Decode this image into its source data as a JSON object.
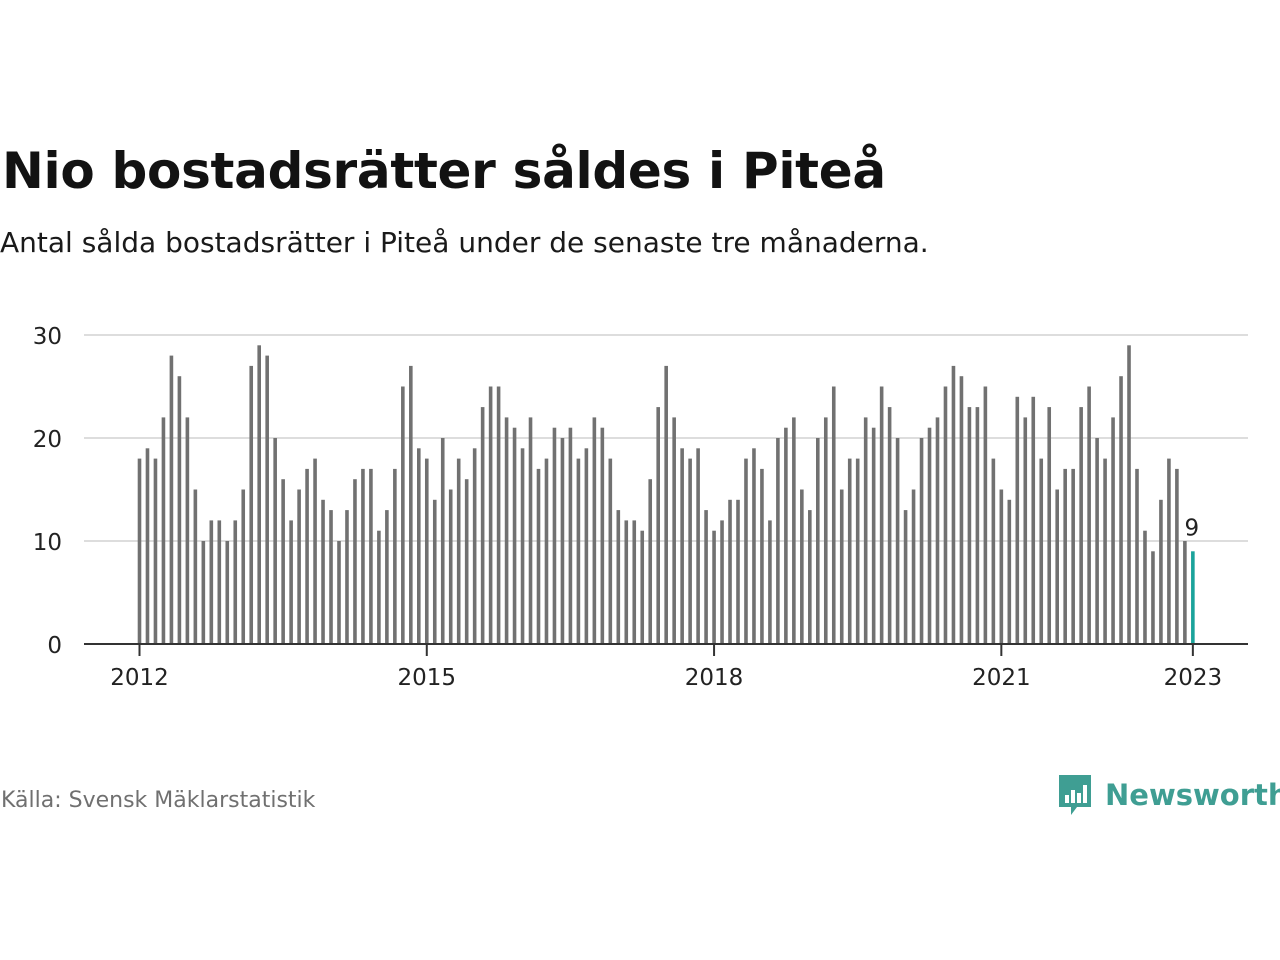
{
  "chart_data": {
    "type": "bar",
    "title": "Nio bostadsrätter såldes i Piteå",
    "subtitle": "Antal sålda bostadsrätter i Piteå under de senaste tre månaderna.",
    "xlabel": "",
    "ylabel": "",
    "x_start": "2012-01",
    "ylim": [
      0,
      30
    ],
    "y_ticks": [
      0,
      10,
      20,
      30
    ],
    "x_ticks": [
      "2012",
      "2015",
      "2018",
      "2021",
      "2023"
    ],
    "x_tick_index": [
      0,
      36,
      72,
      108,
      132
    ],
    "values": [
      18,
      19,
      18,
      22,
      28,
      26,
      22,
      15,
      10,
      12,
      12,
      10,
      12,
      15,
      27,
      29,
      28,
      20,
      16,
      12,
      15,
      17,
      18,
      14,
      13,
      10,
      13,
      16,
      17,
      17,
      11,
      13,
      17,
      25,
      27,
      19,
      18,
      14,
      20,
      15,
      18,
      16,
      19,
      23,
      25,
      25,
      22,
      21,
      19,
      22,
      17,
      18,
      21,
      20,
      21,
      18,
      19,
      22,
      21,
      18,
      13,
      12,
      12,
      11,
      16,
      23,
      27,
      22,
      19,
      18,
      19,
      13,
      11,
      12,
      14,
      14,
      18,
      19,
      17,
      12,
      20,
      21,
      22,
      15,
      13,
      20,
      22,
      25,
      15,
      18,
      18,
      22,
      21,
      25,
      23,
      20,
      13,
      15,
      20,
      21,
      22,
      25,
      27,
      26,
      23,
      23,
      25,
      18,
      15,
      14,
      24,
      22,
      24,
      18,
      23,
      15,
      17,
      17,
      23,
      25,
      20,
      18,
      22,
      26,
      29,
      17,
      11,
      9,
      14,
      18,
      17,
      10,
      9
    ],
    "highlight_index": 132,
    "highlight_label": "9",
    "colors": {
      "bar": "#717171",
      "highlight": "#1ba39b",
      "grid": "#dddddd",
      "axis": "#333333"
    }
  },
  "footer": {
    "source": "Källa: Svensk Mäklarstatistik",
    "brand": "Newsworthy",
    "brand_color": "#3f9e93"
  }
}
